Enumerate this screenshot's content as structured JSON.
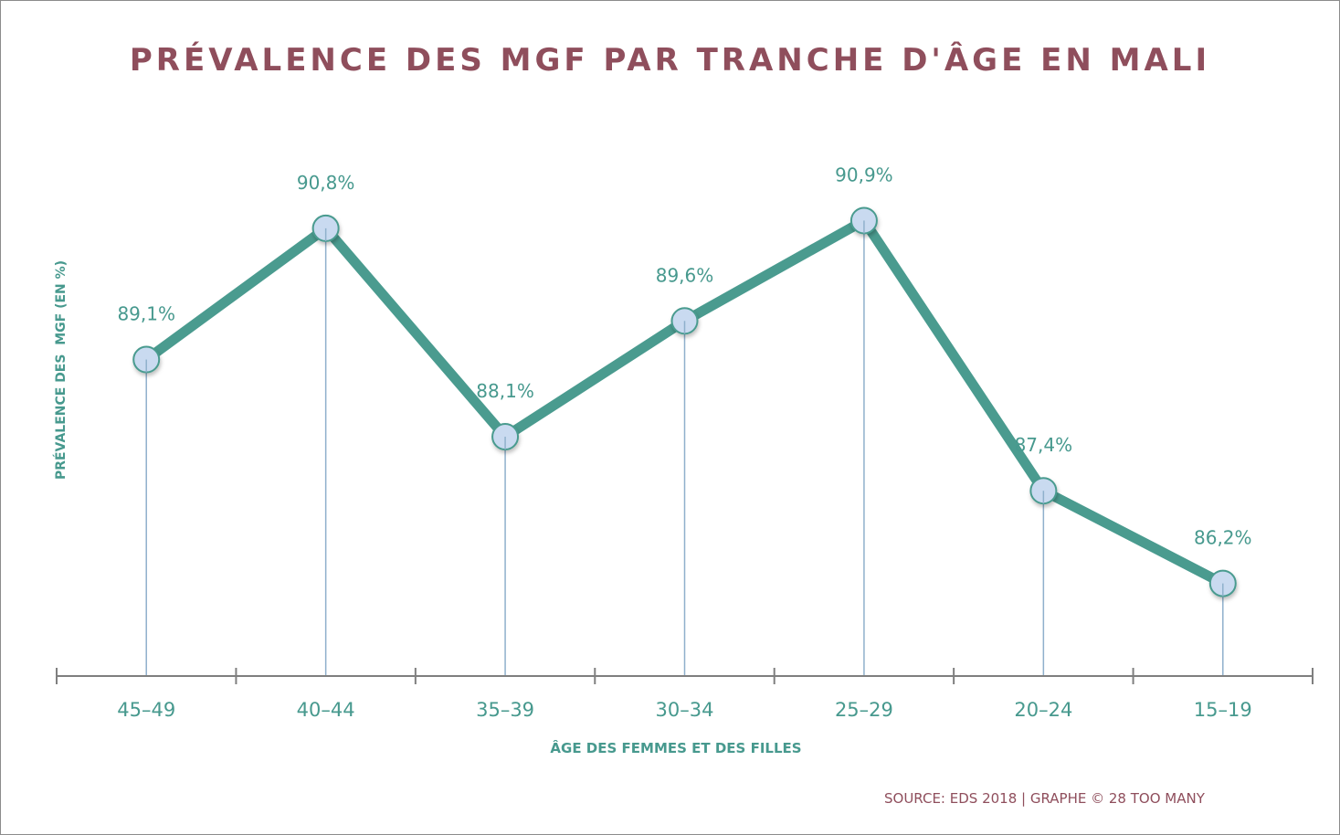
{
  "chart_data": {
    "type": "line",
    "title": "PRÉVALENCE DES MGF PAR TRANCHE D'ÂGE EN MALI",
    "xlabel": "ÂGE DES FEMMES ET DES FILLES",
    "ylabel": "PRÉVALENCE DES  MGF (EN %)",
    "categories": [
      "45–49",
      "40–44",
      "35–39",
      "30–34",
      "25–29",
      "20–24",
      "15–19"
    ],
    "series": [
      {
        "name": "Prévalence des MGF",
        "values": [
          89.1,
          90.8,
          88.1,
          89.6,
          90.9,
          87.4,
          86.2
        ],
        "labels": [
          "89,1%",
          "90,8%",
          "88,1%",
          "89,6%",
          "90,9%",
          "87,4%",
          "86,2%"
        ]
      }
    ],
    "ylim": [
      85,
      92
    ],
    "grid": false,
    "legend": "none",
    "drop_lines": true,
    "source": "SOURCE: EDS 2018 | GRAPHE © 28 TOO MANY"
  },
  "colors": {
    "title": "#8f4e5c",
    "line": "#4a9b8f",
    "marker_fill": "#c9daf0",
    "marker_stroke": "#4a9b8f",
    "drop_line": "#8fb0cc",
    "axis": "#7f7f7f",
    "label": "#47998e"
  }
}
